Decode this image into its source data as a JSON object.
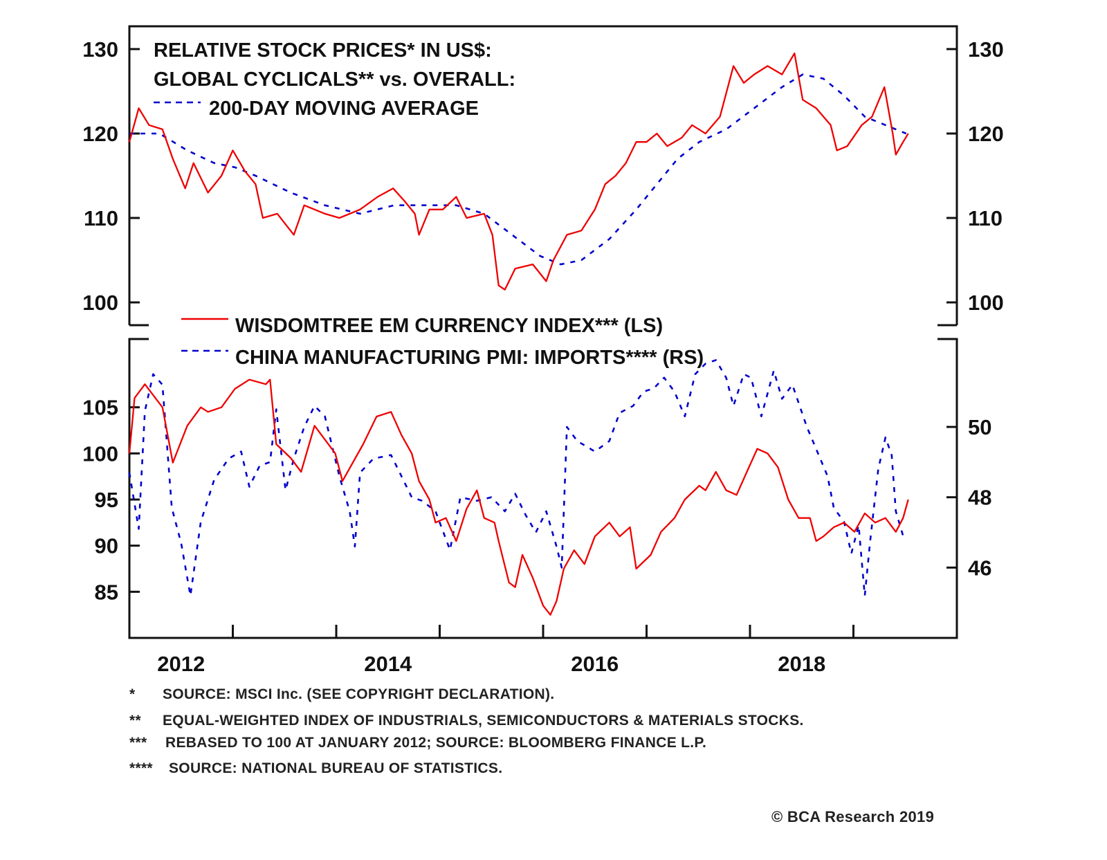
{
  "colors": {
    "red": "#ee0000",
    "blue": "#0000cc",
    "axis": "#111111"
  },
  "chart_data": [
    {
      "type": "line",
      "title_lines": [
        "RELATIVE STOCK PRICES* IN US$:",
        "GLOBAL CYCLICALS** vs. OVERALL:"
      ],
      "legend": [
        {
          "name": "200-DAY MOVING AVERAGE",
          "style": "dashed",
          "color": "#0000cc"
        }
      ],
      "xlim": [
        2012,
        2020
      ],
      "ylim": [
        97.3,
        132.7
      ],
      "yticks_left": [
        130,
        120,
        110,
        100
      ],
      "yticks_right": [
        130,
        120,
        110,
        100
      ],
      "series": [
        {
          "name": "Relative stock prices",
          "color": "#ee0000",
          "style": "solid",
          "x": [
            2012.0,
            2012.09,
            2012.19,
            2012.32,
            2012.42,
            2012.54,
            2012.62,
            2012.76,
            2012.89,
            2013.0,
            2013.12,
            2013.22,
            2013.29,
            2013.43,
            2013.59,
            2013.69,
            2013.89,
            2014.03,
            2014.23,
            2014.4,
            2014.55,
            2014.66,
            2014.76,
            2014.8,
            2014.9,
            2015.03,
            2015.16,
            2015.26,
            2015.43,
            2015.51,
            2015.57,
            2015.63,
            2015.73,
            2015.9,
            2016.03,
            2016.1,
            2016.23,
            2016.37,
            2016.5,
            2016.6,
            2016.7,
            2016.8,
            2016.9,
            2017.0,
            2017.1,
            2017.2,
            2017.34,
            2017.44,
            2017.57,
            2017.71,
            2017.84,
            2017.94,
            2018.04,
            2018.17,
            2018.31,
            2018.43,
            2018.51,
            2018.64,
            2018.78,
            2018.84,
            2018.94,
            2019.08,
            2019.18,
            2019.3,
            2019.38,
            2019.41,
            2019.48,
            2019.53
          ],
          "y": [
            119,
            123,
            121,
            120.5,
            117,
            113.5,
            116.5,
            113,
            115,
            118,
            115.5,
            114,
            110,
            110.5,
            108,
            111.5,
            110.5,
            110,
            111,
            112.5,
            113.5,
            112,
            110.5,
            108,
            111,
            111,
            112.5,
            110,
            110.5,
            108,
            102,
            101.5,
            104,
            104.5,
            102.5,
            105,
            108,
            108.5,
            111,
            114,
            115,
            116.5,
            119,
            119,
            120,
            118.5,
            119.5,
            121,
            120,
            122,
            128,
            126,
            127,
            128,
            127,
            129.5,
            124,
            123,
            121,
            118,
            118.5,
            121,
            122,
            125.5,
            120,
            117.5,
            119,
            120
          ]
        },
        {
          "name": "200-day moving average",
          "color": "#0000cc",
          "style": "dashed",
          "x": [
            2012.0,
            2012.29,
            2012.56,
            2012.82,
            2013.02,
            2013.22,
            2013.56,
            2013.89,
            2014.23,
            2014.56,
            2014.9,
            2015.16,
            2015.43,
            2015.7,
            2015.97,
            2016.17,
            2016.37,
            2016.64,
            2016.9,
            2017.1,
            2017.3,
            2017.51,
            2017.77,
            2018.04,
            2018.31,
            2018.51,
            2018.71,
            2018.91,
            2019.11,
            2019.31,
            2019.51
          ],
          "y": [
            120,
            120,
            118,
            116.5,
            116,
            115,
            113,
            111.5,
            110.5,
            111.5,
            111.5,
            111.5,
            110.5,
            108,
            105.5,
            104.5,
            105,
            107.5,
            111,
            114,
            117,
            119,
            120.5,
            123,
            125.5,
            127,
            126.5,
            124.5,
            122,
            121,
            120
          ]
        }
      ]
    },
    {
      "type": "line",
      "legend": [
        {
          "name": "WISDOMTREE EM CURRENCY INDEX*** (LS)",
          "style": "solid",
          "color": "#ee0000"
        },
        {
          "name": "CHINA MANUFACTURING PMI: IMPORTS**** (RS)",
          "style": "dashed",
          "color": "#0000cc"
        }
      ],
      "xlim": [
        2012,
        2020
      ],
      "xticks": [
        2012,
        2014,
        2016,
        2018
      ],
      "ylim_left": [
        80.0,
        112.4
      ],
      "ylim_right": [
        44.0,
        52.5
      ],
      "yticks_left": [
        105,
        100,
        95,
        90,
        85
      ],
      "yticks_right": [
        50,
        48,
        46
      ],
      "series": [
        {
          "name": "WisdomTree EM Currency Index",
          "axis": "left",
          "color": "#ee0000",
          "style": "solid",
          "x": [
            2012.0,
            2012.05,
            2012.15,
            2012.32,
            2012.42,
            2012.56,
            2012.69,
            2012.76,
            2012.89,
            2013.02,
            2013.16,
            2013.32,
            2013.36,
            2013.42,
            2013.56,
            2013.66,
            2013.79,
            2013.89,
            2013.99,
            2014.06,
            2014.16,
            2014.26,
            2014.39,
            2014.53,
            2014.63,
            2014.73,
            2014.8,
            2014.9,
            2014.96,
            2015.06,
            2015.16,
            2015.26,
            2015.36,
            2015.43,
            2015.53,
            2015.57,
            2015.67,
            2015.73,
            2015.8,
            2015.9,
            2016.0,
            2016.07,
            2016.13,
            2016.2,
            2016.3,
            2016.4,
            2016.5,
            2016.64,
            2016.74,
            2016.84,
            2016.9,
            2017.04,
            2017.14,
            2017.27,
            2017.37,
            2017.51,
            2017.57,
            2017.67,
            2017.77,
            2017.87,
            2017.97,
            2018.07,
            2018.17,
            2018.27,
            2018.37,
            2018.47,
            2018.58,
            2018.64,
            2018.71,
            2018.81,
            2018.91,
            2019.01,
            2019.11,
            2019.21,
            2019.31,
            2019.41,
            2019.48,
            2019.53
          ],
          "y": [
            100,
            106,
            107.5,
            105,
            99,
            103,
            105,
            104.5,
            105,
            107,
            108,
            107.5,
            108,
            101,
            99.5,
            98,
            103,
            101.5,
            100,
            97,
            99,
            101,
            104,
            104.5,
            102,
            100,
            97,
            95,
            92.5,
            93,
            90.5,
            94,
            96,
            93,
            92.5,
            90.5,
            86,
            85.5,
            89,
            86.5,
            83.5,
            82.5,
            84,
            87.5,
            89.5,
            88,
            91,
            92.5,
            91,
            92,
            87.5,
            89,
            91.5,
            93,
            95,
            96.5,
            96,
            98,
            96,
            95.5,
            98,
            100.5,
            100,
            98.5,
            95,
            93,
            93,
            90.5,
            91,
            92,
            92.5,
            91.5,
            93.5,
            92.5,
            93,
            91.5,
            93,
            95
          ]
        },
        {
          "name": "China Manufacturing PMI: Imports",
          "axis": "right",
          "color": "#0000cc",
          "style": "dashed",
          "x": [
            2012.0,
            2012.09,
            2012.15,
            2012.23,
            2012.32,
            2012.41,
            2012.5,
            2012.59,
            2012.69,
            2012.82,
            2012.96,
            2013.08,
            2013.16,
            2013.26,
            2013.36,
            2013.42,
            2013.51,
            2013.59,
            2013.69,
            2013.79,
            2013.89,
            2014.03,
            2014.13,
            2014.18,
            2014.23,
            2014.36,
            2014.53,
            2014.63,
            2014.73,
            2014.83,
            2014.96,
            2015.1,
            2015.2,
            2015.36,
            2015.5,
            2015.63,
            2015.73,
            2015.83,
            2015.93,
            2016.03,
            2016.13,
            2016.18,
            2016.23,
            2016.33,
            2016.5,
            2016.64,
            2016.74,
            2016.87,
            2016.97,
            2017.07,
            2017.17,
            2017.27,
            2017.37,
            2017.47,
            2017.57,
            2017.67,
            2017.77,
            2017.84,
            2017.94,
            2018.01,
            2018.11,
            2018.23,
            2018.31,
            2018.41,
            2018.55,
            2018.65,
            2018.75,
            2018.81,
            2018.91,
            2018.98,
            2019.05,
            2019.11,
            2019.16,
            2019.24,
            2019.31,
            2019.37,
            2019.41,
            2019.48
          ],
          "y": [
            48.7,
            47.1,
            50.45,
            51.5,
            51.2,
            47.7,
            46.7,
            45.2,
            47.3,
            48.5,
            49.1,
            49.3,
            48.3,
            48.9,
            49.0,
            50.5,
            48.2,
            49.1,
            50.0,
            50.6,
            50.3,
            48.6,
            47.6,
            46.6,
            48.7,
            49.1,
            49.2,
            48.6,
            48.0,
            47.9,
            47.6,
            46.5,
            48.0,
            47.9,
            48.0,
            47.6,
            48.1,
            47.5,
            47.0,
            47.6,
            46.6,
            46.0,
            50.0,
            49.6,
            49.3,
            49.6,
            50.4,
            50.6,
            51.0,
            51.1,
            51.4,
            51.0,
            50.3,
            51.5,
            51.8,
            51.9,
            51.4,
            50.6,
            51.5,
            51.4,
            50.3,
            51.6,
            50.8,
            51.2,
            50.0,
            49.3,
            48.6,
            47.7,
            47.3,
            46.4,
            47.2,
            45.2,
            46.7,
            48.8,
            49.7,
            49.2,
            47.6,
            46.9
          ]
        }
      ]
    }
  ],
  "footnotes": [
    {
      "mark": "*",
      "text": "SOURCE: MSCI Inc. (SEE COPYRIGHT DECLARATION)."
    },
    {
      "mark": "**",
      "text": "EQUAL-WEIGHTED INDEX OF INDUSTRIALS, SEMICONDUCTORS & MATERIALS STOCKS."
    },
    {
      "mark": "***",
      "text": "REBASED TO 100 AT JANUARY 2012; SOURCE: BLOOMBERG FINANCE L.P."
    },
    {
      "mark": "****",
      "text": "SOURCE: NATIONAL BUREAU OF STATISTICS."
    }
  ],
  "copyright": "© BCA Research 2019"
}
